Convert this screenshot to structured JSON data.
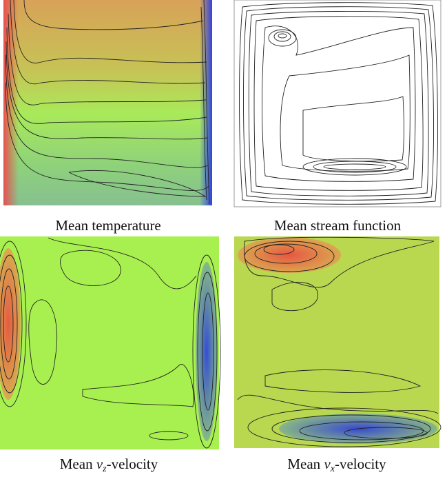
{
  "panels": [
    {
      "caption": {
        "text": "Mean temperature"
      }
    },
    {
      "caption": {
        "text": "Mean stream function"
      }
    },
    {
      "caption": {
        "prefix": "Mean ",
        "variable": "v",
        "subscript": "z",
        "suffix": "-velocity"
      }
    },
    {
      "caption": {
        "prefix": "Mean ",
        "variable": "v",
        "subscript": "x",
        "suffix": "-velocity"
      }
    }
  ]
}
